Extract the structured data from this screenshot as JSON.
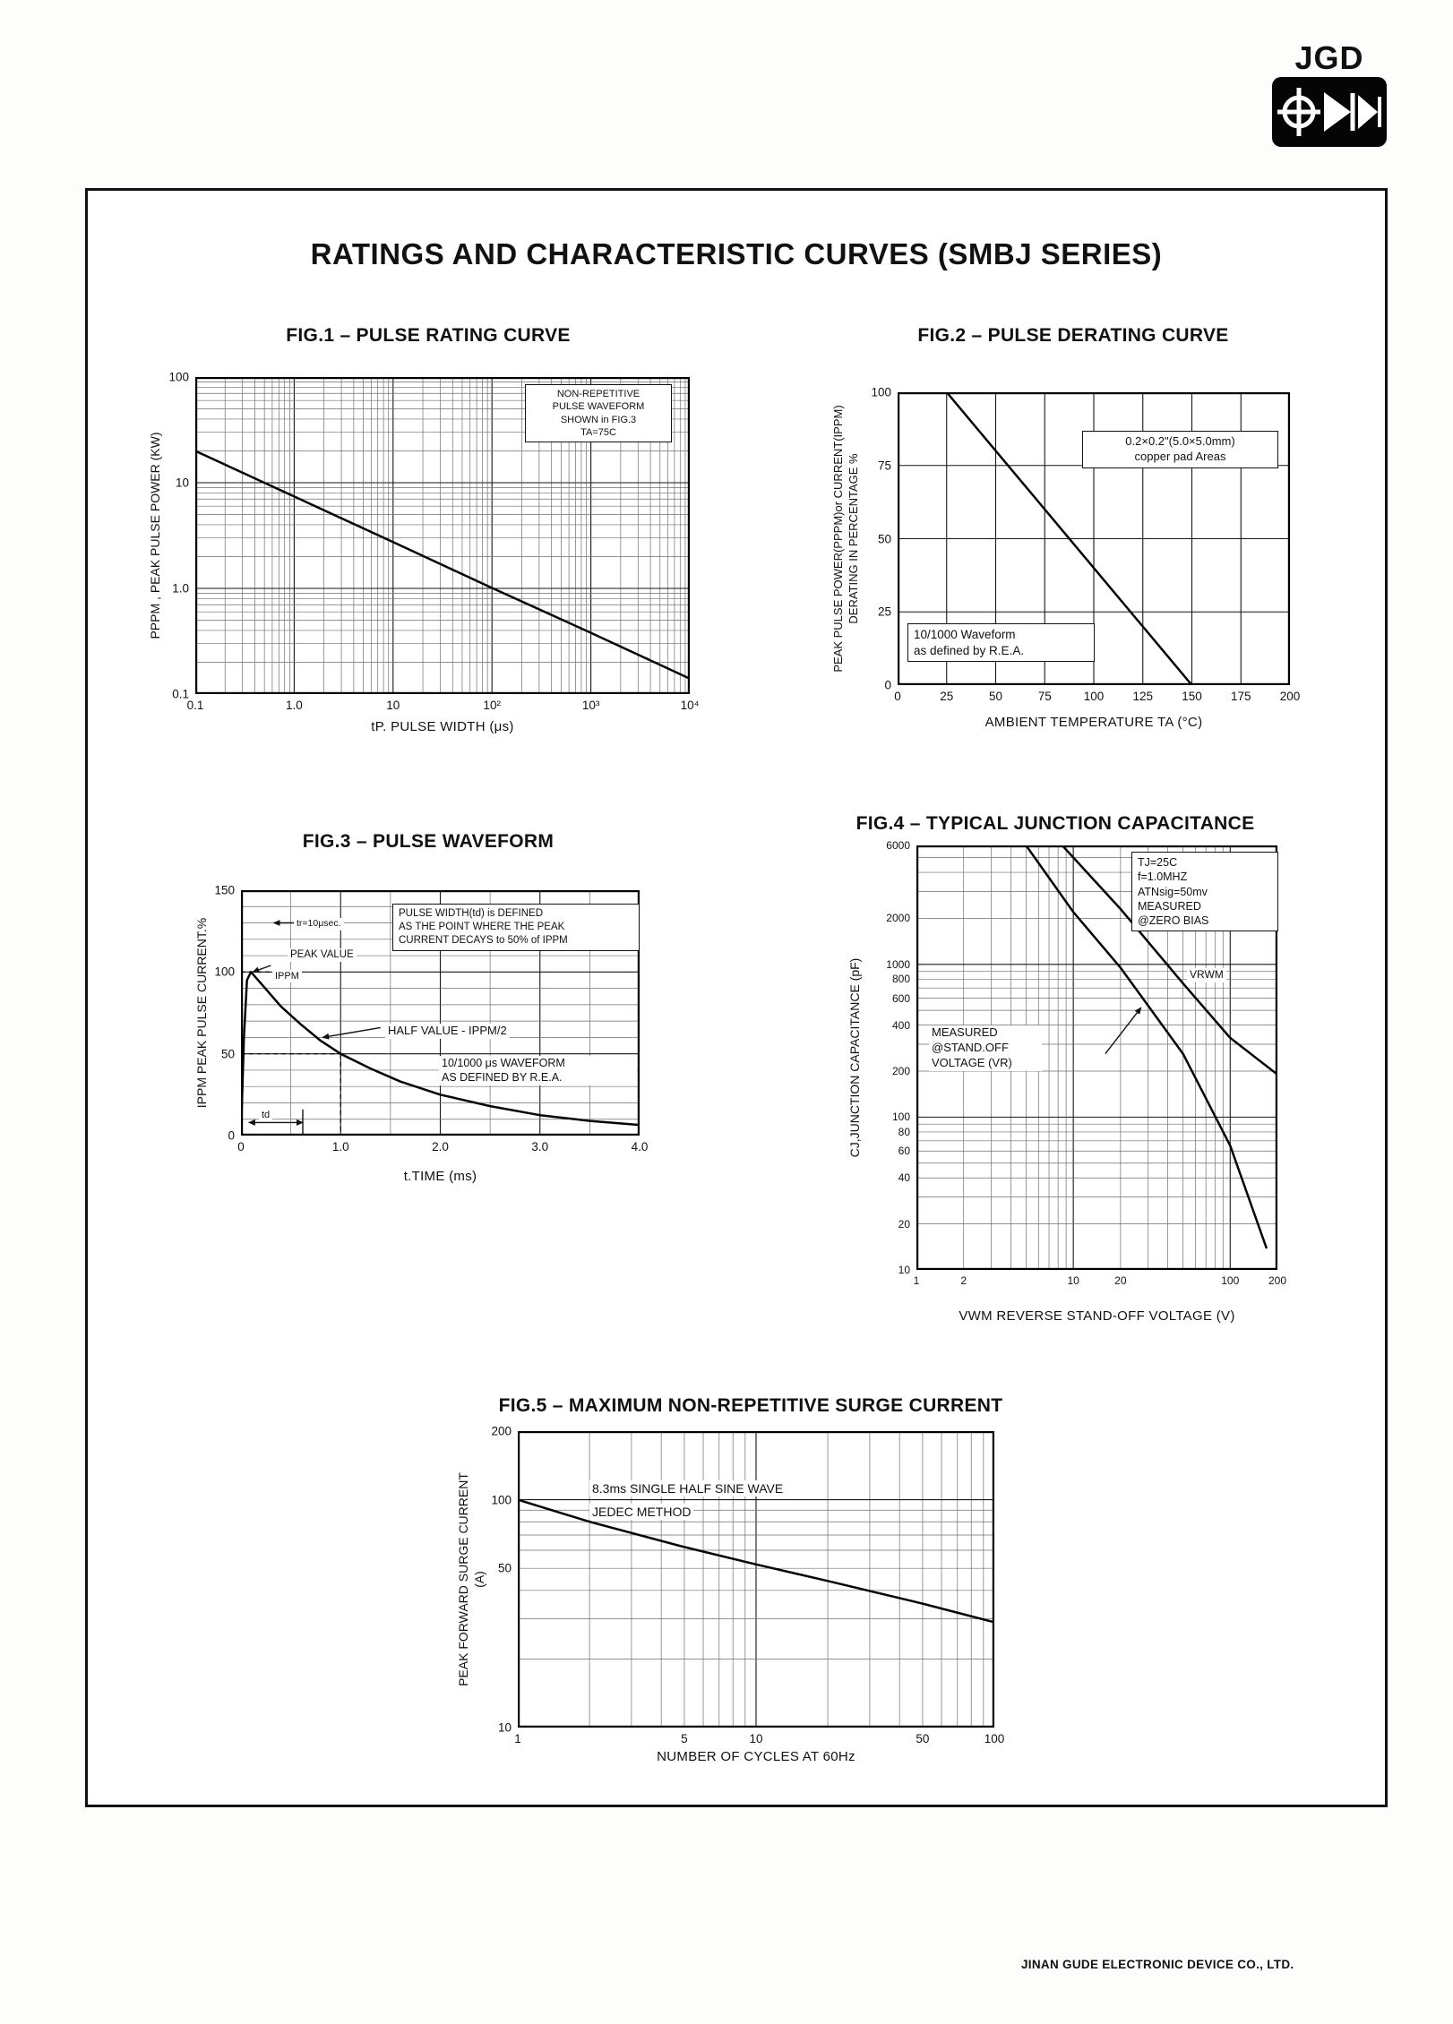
{
  "page": {
    "logo_text": "JGD",
    "title": "RATINGS AND CHARACTERISTIC CURVES (SMBJ SERIES)",
    "footer": "JINAN GUDE ELECTRONIC DEVICE CO., LTD."
  },
  "chart_data": [
    {
      "type": "line",
      "title": "FIG.1 – PULSE RATING CURVE",
      "xlabel": "tP. PULSE WIDTH (μs)",
      "ylabel": "PPPM , PEAK PULSE POWER (KW)",
      "xscale": "log",
      "yscale": "log",
      "xlim": [
        0.1,
        10000
      ],
      "ylim": [
        0.1,
        100
      ],
      "grid": "log-log minor every 1-9 per decade",
      "legend": "none",
      "xticks": [
        {
          "v": 0.1,
          "label": "0.1"
        },
        {
          "v": 1,
          "label": "1.0"
        },
        {
          "v": 10,
          "label": "10"
        },
        {
          "v": 100,
          "label": "10²"
        },
        {
          "v": 1000,
          "label": "10³"
        },
        {
          "v": 10000,
          "label": "10⁴"
        }
      ],
      "yticks": [
        {
          "v": 0.1,
          "label": "0.1"
        },
        {
          "v": 1,
          "label": "1.0"
        },
        {
          "v": 10,
          "label": "10"
        },
        {
          "v": 100,
          "label": "100"
        }
      ],
      "series": [
        {
          "name": "peak pulse power vs pulse width",
          "points": [
            [
              0.1,
              20
            ],
            [
              1,
              7.4
            ],
            [
              10,
              2.74
            ],
            [
              100,
              1.01
            ],
            [
              1000,
              0.38
            ],
            [
              10000,
              0.14
            ]
          ]
        }
      ],
      "annotations": {
        "note": "NON-REPETITIVE\nPULSE WAVEFORM\nSHOWN in FIG.3\nTA=75C"
      }
    },
    {
      "type": "line",
      "title": "FIG.2 – PULSE DERATING CURVE",
      "xlabel": "AMBIENT TEMPERATURE TA (°C)",
      "ylabel": "PEAK PULSE POWER(PPPM)or CURRENT(IPPM)\nDERATING IN PERCENTAGE %",
      "xscale": "linear",
      "yscale": "linear",
      "xlim": [
        0,
        200
      ],
      "ylim": [
        0,
        100
      ],
      "xstep": {
        "minor": 25,
        "major": 25
      },
      "ystep": {
        "minor": 25,
        "major": 25
      },
      "xticks": [
        {
          "v": 0,
          "label": "0"
        },
        {
          "v": 25,
          "label": "25"
        },
        {
          "v": 50,
          "label": "50"
        },
        {
          "v": 75,
          "label": "75"
        },
        {
          "v": 100,
          "label": "100"
        },
        {
          "v": 125,
          "label": "125"
        },
        {
          "v": 150,
          "label": "150"
        },
        {
          "v": 175,
          "label": "175"
        },
        {
          "v": 200,
          "label": "200"
        }
      ],
      "yticks": [
        {
          "v": 0,
          "label": "0"
        },
        {
          "v": 25,
          "label": "25"
        },
        {
          "v": 50,
          "label": "50"
        },
        {
          "v": 75,
          "label": "75"
        },
        {
          "v": 100,
          "label": "100"
        }
      ],
      "series": [
        {
          "name": "derating line",
          "points": [
            [
              25,
              100
            ],
            [
              150,
              0
            ]
          ]
        }
      ],
      "annotations": {
        "pad": "0.2×0.2\"(5.0×5.0mm)\ncopper pad Areas",
        "wave": "10/1000 Waveform\nas defined by R.E.A."
      }
    },
    {
      "type": "line",
      "title": "FIG.3 – PULSE WAVEFORM",
      "xlabel": "t.TIME (ms)",
      "ylabel": "IPPM PEAK PULSE CURRENT.%",
      "xscale": "linear",
      "yscale": "linear",
      "xlim": [
        0,
        4
      ],
      "ylim": [
        0,
        150
      ],
      "xstep": {
        "minor": 0.5,
        "major": 1
      },
      "ystep": {
        "minor": 10,
        "major": 50
      },
      "xticks": [
        {
          "v": 0,
          "label": "0"
        },
        {
          "v": 1,
          "label": "1.0"
        },
        {
          "v": 2,
          "label": "2.0"
        },
        {
          "v": 3,
          "label": "3.0"
        },
        {
          "v": 4,
          "label": "4.0"
        }
      ],
      "yticks": [
        {
          "v": 0,
          "label": "0"
        },
        {
          "v": 50,
          "label": "50"
        },
        {
          "v": 100,
          "label": "100"
        },
        {
          "v": 150,
          "label": "150"
        }
      ],
      "series": [
        {
          "name": "10/1000 μs waveform",
          "points": [
            [
              0,
              0
            ],
            [
              0.03,
              60
            ],
            [
              0.06,
              95
            ],
            [
              0.1,
              100
            ],
            [
              0.2,
              93
            ],
            [
              0.4,
              79
            ],
            [
              0.6,
              68
            ],
            [
              0.8,
              58
            ],
            [
              1,
              50
            ],
            [
              1.3,
              41
            ],
            [
              1.6,
              33
            ],
            [
              2,
              25
            ],
            [
              2.5,
              18
            ],
            [
              3,
              12.5
            ],
            [
              3.5,
              9
            ],
            [
              4,
              6.5
            ]
          ]
        }
      ],
      "ref_lines": [
        {
          "x1": 0,
          "y1": 100,
          "x2": 0.55,
          "y2": 100,
          "dash": true
        },
        {
          "x1": 0,
          "y1": 50,
          "x2": 1,
          "y2": 50,
          "dash": true
        },
        {
          "x1": 1,
          "y1": 50,
          "x2": 1,
          "y2": 0,
          "dash": true
        },
        {
          "x1": 0.08,
          "y1": 8,
          "x2": 0.62,
          "y2": 8,
          "arrow": "both"
        },
        {
          "x1": 0.62,
          "y1": 0,
          "x2": 0.62,
          "y2": 16
        },
        {
          "x1": 0.33,
          "y1": 130,
          "x2": 0.78,
          "y2": 130,
          "arrow": "both"
        },
        {
          "x1": 1.4,
          "y1": 66,
          "x2": 0.82,
          "y2": 60,
          "arrow": "end"
        },
        {
          "x1": 0.3,
          "y1": 104,
          "x2": 0.12,
          "y2": 100,
          "arrow": "end"
        }
      ],
      "annotations": {
        "tr": "tr=10μsec.",
        "peak": "PEAK VALUE",
        "ippm": "IPPM",
        "width_note": "PULSE WIDTH(td) is DEFINED\nAS THE POINT WHERE THE PEAK\nCURRENT DECAYS to 50% of IPPM",
        "half": "HALF VALUE - IPPM/2",
        "wave": "10/1000 μs  WAVEFORM\nAS DEFINED BY R.E.A.",
        "td": "td"
      }
    },
    {
      "type": "line",
      "title": "FIG.4 – TYPICAL JUNCTION CAPACITANCE",
      "xlabel": "VWM REVERSE STAND-OFF VOLTAGE (V)",
      "ylabel": "CJ,JUNCTION CAPACITANCE (pF)",
      "xscale": "log",
      "yscale": "log",
      "xlim": [
        1,
        200
      ],
      "ylim": [
        10,
        6000
      ],
      "xticks": [
        {
          "v": 1,
          "label": "1"
        },
        {
          "v": 2,
          "label": "2"
        },
        {
          "v": 10,
          "label": "10"
        },
        {
          "v": 20,
          "label": "20"
        },
        {
          "v": 100,
          "label": "100"
        },
        {
          "v": 200,
          "label": "200"
        }
      ],
      "yticks": [
        {
          "v": 10,
          "label": "10"
        },
        {
          "v": 20,
          "label": "20"
        },
        {
          "v": 40,
          "label": "40"
        },
        {
          "v": 60,
          "label": "60"
        },
        {
          "v": 80,
          "label": "80"
        },
        {
          "v": 100,
          "label": "100"
        },
        {
          "v": 200,
          "label": "200"
        },
        {
          "v": 400,
          "label": "400"
        },
        {
          "v": 600,
          "label": "600"
        },
        {
          "v": 800,
          "label": "800"
        },
        {
          "v": 1000,
          "label": "1000"
        },
        {
          "v": 2000,
          "label": "2000"
        },
        {
          "v": 6000,
          "label": "6000"
        }
      ],
      "series": [
        {
          "name": "measured at stand-off voltage (VR)",
          "points": [
            [
              5,
              6000
            ],
            [
              10,
              2200
            ],
            [
              20,
              950
            ],
            [
              50,
              260
            ],
            [
              100,
              65
            ],
            [
              170,
              14
            ]
          ]
        },
        {
          "name": "measured at zero bias",
          "points": [
            [
              8.5,
              6000
            ],
            [
              20,
              2300
            ],
            [
              50,
              750
            ],
            [
              100,
              330
            ],
            [
              200,
              190
            ]
          ]
        }
      ],
      "ref_lines": [
        {
          "x1": 16,
          "y1": 260,
          "x2": 27,
          "y2": 520,
          "arrow": "end"
        }
      ],
      "annotations": {
        "cond": "TJ=25C\nf=1.0MHZ\nATNsig=50mv\nMEASURED\n@ZERO BIAS",
        "vrwm": "VRWM",
        "meas": "MEASURED\n@STAND.OFF\nVOLTAGE (VR)"
      }
    },
    {
      "type": "line",
      "title": "FIG.5 – MAXIMUM NON-REPETITIVE SURGE CURRENT",
      "xlabel": "NUMBER OF CYCLES AT 60Hz",
      "ylabel": "PEAK FORWARD SURGE CURRENT\n(A)",
      "xscale": "log",
      "yscale": "log",
      "xlim": [
        1,
        100
      ],
      "ylim": [
        10,
        200
      ],
      "xticks": [
        {
          "v": 1,
          "label": "1"
        },
        {
          "v": 5,
          "label": "5"
        },
        {
          "v": 10,
          "label": "10"
        },
        {
          "v": 50,
          "label": "50"
        },
        {
          "v": 100,
          "label": "100"
        }
      ],
      "yticks": [
        {
          "v": 10,
          "label": "10"
        },
        {
          "v": 50,
          "label": "50"
        },
        {
          "v": 100,
          "label": "100"
        },
        {
          "v": 200,
          "label": "200"
        }
      ],
      "series": [
        {
          "name": "surge current vs cycles",
          "points": [
            [
              1,
              100
            ],
            [
              2,
              80
            ],
            [
              5,
              62
            ],
            [
              10,
              52
            ],
            [
              20,
              44
            ],
            [
              50,
              35
            ],
            [
              100,
              29
            ]
          ]
        }
      ],
      "annotations": {
        "note1": "8.3ms SINGLE HALF SINE WAVE",
        "note2": "JEDEC METHOD"
      }
    }
  ]
}
